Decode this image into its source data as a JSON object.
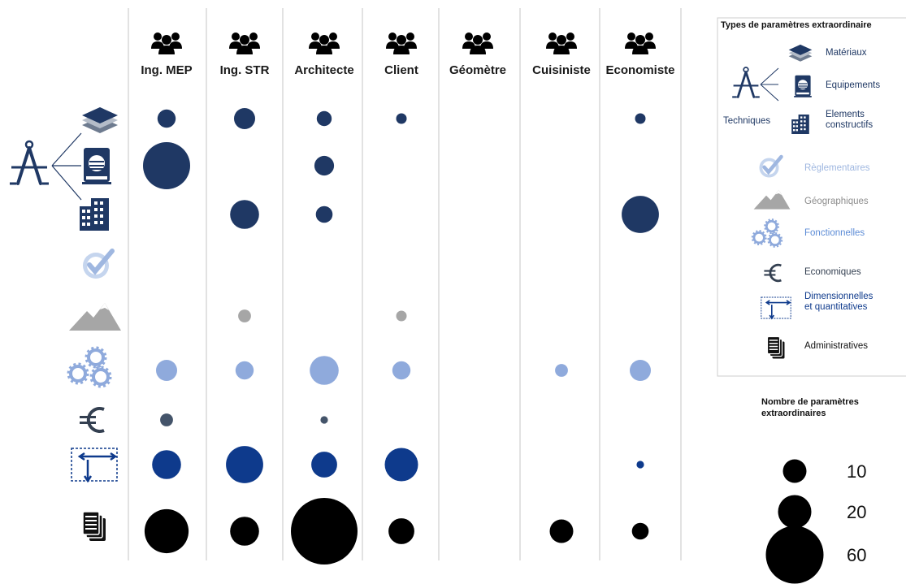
{
  "chart_data": {
    "type": "scatter",
    "categories": [
      "Ing. MEP",
      "Ing. STR",
      "Architecte",
      "Client",
      "Géomètre",
      "Cuisiniste",
      "Economiste"
    ],
    "rows": [
      "Matériaux",
      "Equipements",
      "Elements constructifs",
      "Règlementaires",
      "Géographiques",
      "Fonctionnelles",
      "Economiques",
      "Dimensionnelles et quantitatives",
      "Administratives"
    ],
    "row_colors": [
      "#1f3864",
      "#1f3864",
      "#1f3864",
      "#c5d5ee",
      "#a6a6a6",
      "#8faadc",
      "#44546a",
      "#0e3a8c",
      "#000000"
    ],
    "points": [
      {
        "row": 0,
        "col": 0,
        "value": 6
      },
      {
        "row": 0,
        "col": 1,
        "value": 8
      },
      {
        "row": 0,
        "col": 2,
        "value": 4
      },
      {
        "row": 0,
        "col": 3,
        "value": 2
      },
      {
        "row": 0,
        "col": 6,
        "value": 2
      },
      {
        "row": 1,
        "col": 0,
        "value": 40
      },
      {
        "row": 1,
        "col": 2,
        "value": 7
      },
      {
        "row": 2,
        "col": 1,
        "value": 15
      },
      {
        "row": 2,
        "col": 2,
        "value": 5
      },
      {
        "row": 2,
        "col": 6,
        "value": 25
      },
      {
        "row": 4,
        "col": 1,
        "value": 3
      },
      {
        "row": 4,
        "col": 3,
        "value": 2
      },
      {
        "row": 5,
        "col": 0,
        "value": 8
      },
      {
        "row": 5,
        "col": 1,
        "value": 6
      },
      {
        "row": 5,
        "col": 2,
        "value": 15
      },
      {
        "row": 5,
        "col": 3,
        "value": 6
      },
      {
        "row": 5,
        "col": 5,
        "value": 3
      },
      {
        "row": 5,
        "col": 6,
        "value": 8
      },
      {
        "row": 6,
        "col": 0,
        "value": 3
      },
      {
        "row": 6,
        "col": 2,
        "value": 1
      },
      {
        "row": 7,
        "col": 0,
        "value": 15
      },
      {
        "row": 7,
        "col": 1,
        "value": 25
      },
      {
        "row": 7,
        "col": 2,
        "value": 12
      },
      {
        "row": 7,
        "col": 3,
        "value": 20
      },
      {
        "row": 7,
        "col": 6,
        "value": 1
      },
      {
        "row": 8,
        "col": 0,
        "value": 35
      },
      {
        "row": 8,
        "col": 1,
        "value": 15
      },
      {
        "row": 8,
        "col": 2,
        "value": 80
      },
      {
        "row": 8,
        "col": 3,
        "value": 12
      },
      {
        "row": 8,
        "col": 5,
        "value": 10
      },
      {
        "row": 8,
        "col": 6,
        "value": 5
      }
    ],
    "size_legend": {
      "title": "Nombre de paramètres extraordinaires",
      "values": [
        10,
        20,
        60
      ]
    },
    "grid": false
  },
  "legend": {
    "title": "Types de paramètres extraordinaire",
    "group_label": "Techniques",
    "items": [
      {
        "label": "Matériaux",
        "color": "#1f3864",
        "icon": "layers-icon"
      },
      {
        "label": "Equipements",
        "color": "#1f3864",
        "icon": "equipment-icon"
      },
      {
        "label": "Elements constructifs",
        "color": "#1f3864",
        "icon": "building-icon"
      },
      {
        "label": "Règlementaires",
        "color": "#9fb7e0",
        "icon": "check-icon"
      },
      {
        "label": "Géographiques",
        "color": "#8c8c8c",
        "icon": "mountain-icon"
      },
      {
        "label": "Fonctionnelles",
        "color": "#5b8bd6",
        "icon": "gears-icon"
      },
      {
        "label": "Economiques",
        "color": "#333f50",
        "icon": "euro-icon"
      },
      {
        "label": "Dimensionnelles et quantitatives",
        "color": "#0e3a8c",
        "icon": "dimension-icon"
      },
      {
        "label": "Administratives",
        "color": "#111111",
        "icon": "documents-icon"
      }
    ]
  }
}
